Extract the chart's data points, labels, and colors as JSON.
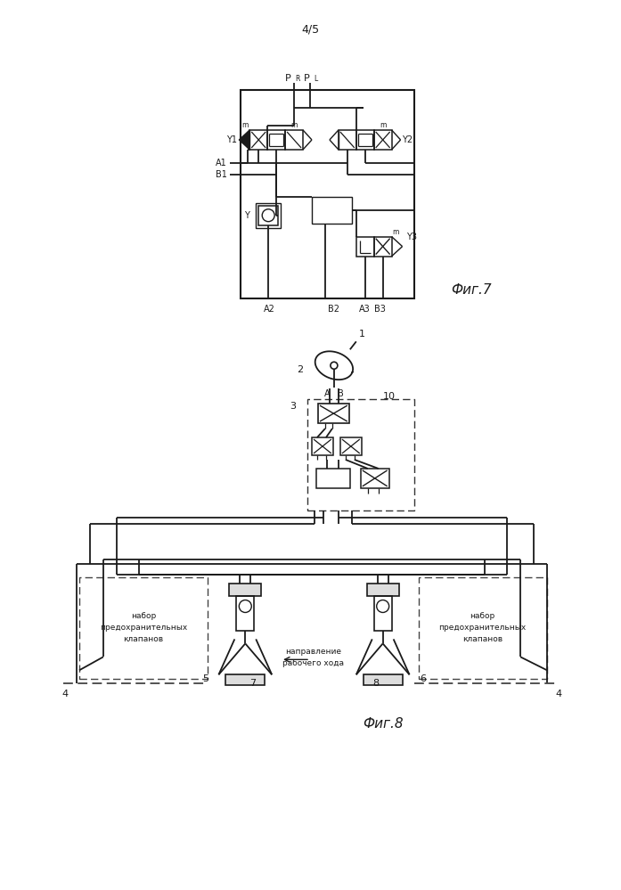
{
  "page_label": "4/5",
  "fig7_label": "Фиг.7",
  "fig8_label": "Фиг.8",
  "background": "#ffffff",
  "line_color": "#1a1a1a",
  "text_color": "#1a1a1a"
}
